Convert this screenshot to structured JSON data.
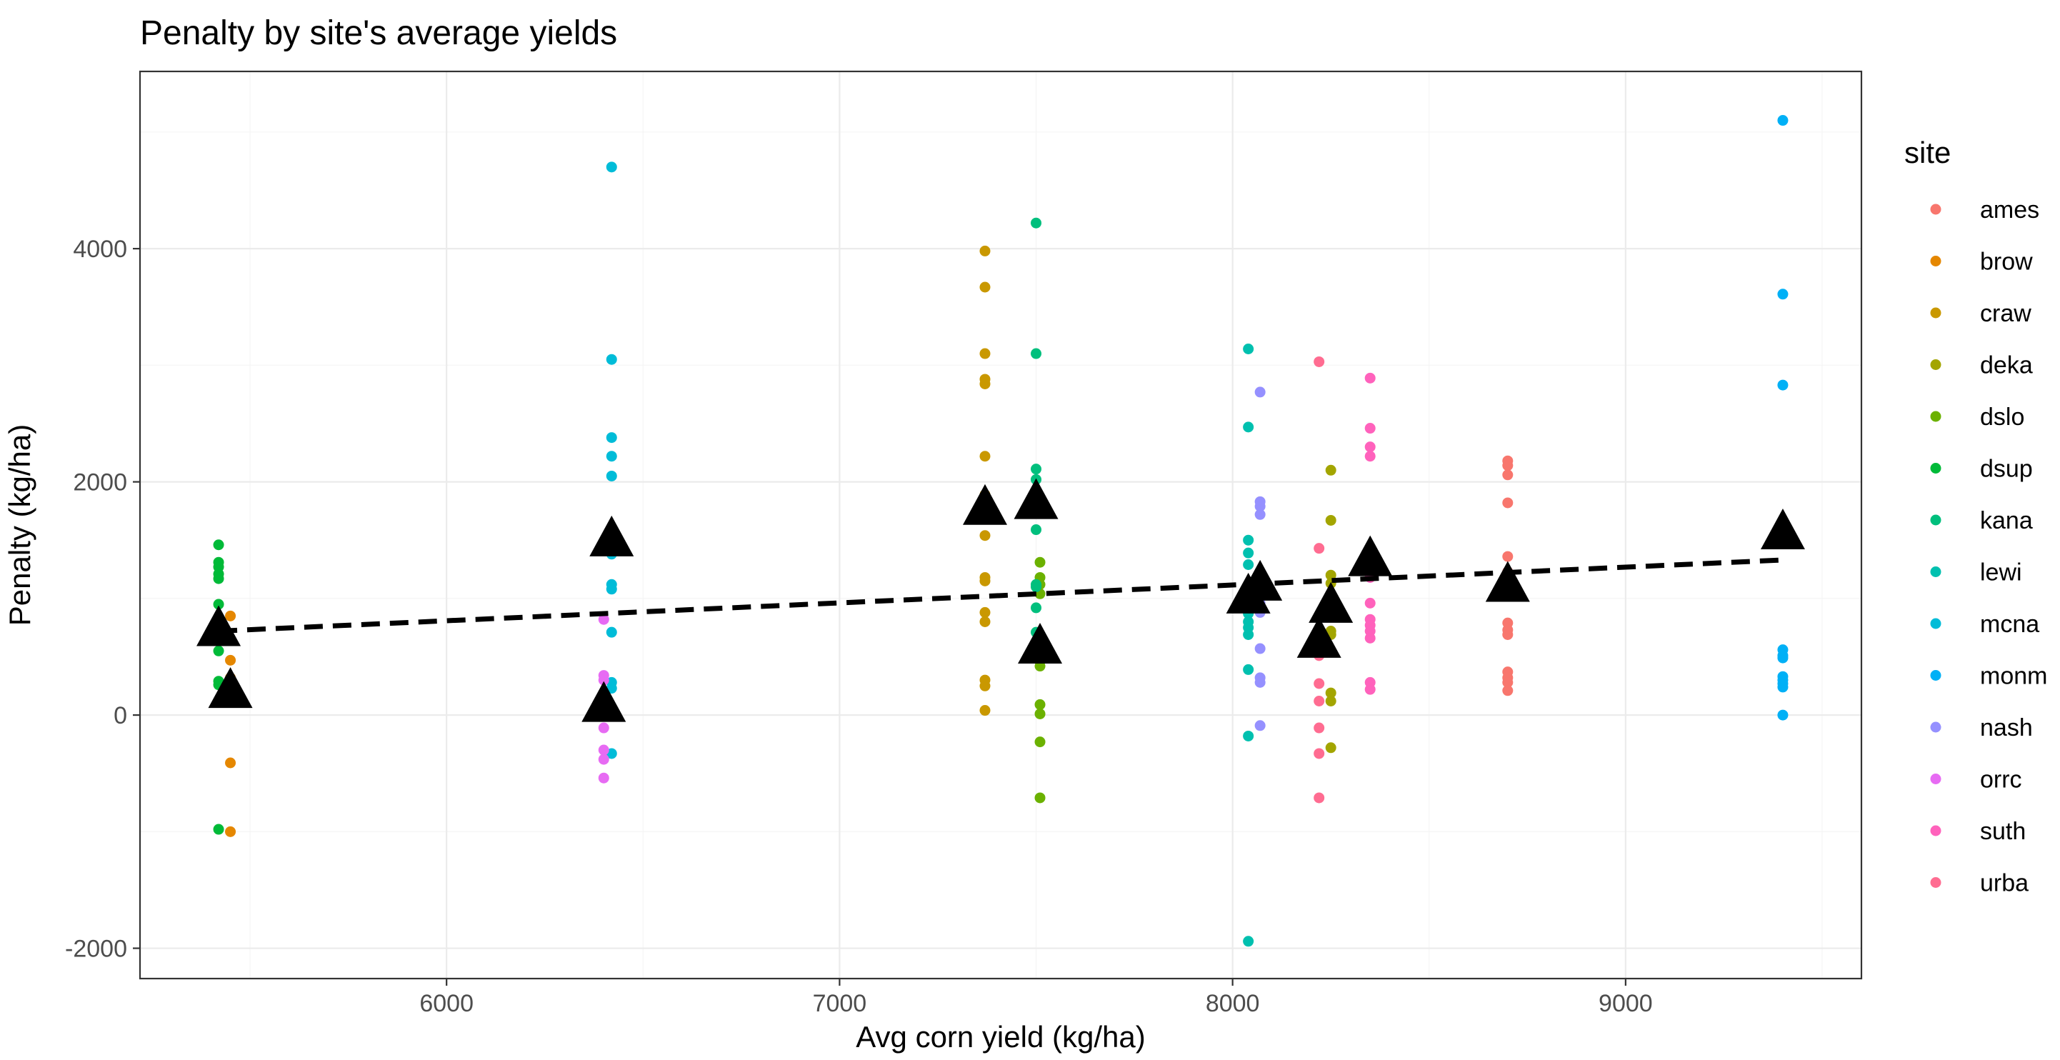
{
  "chart_data": {
    "type": "scatter",
    "title": "Penalty by site's average yields",
    "xlabel": "Avg corn yield (kg/ha)",
    "ylabel": "Penalty (kg/ha)",
    "xlim": [
      5220,
      9600
    ],
    "ylim": [
      -2260,
      5520
    ],
    "x_ticks": [
      6000,
      7000,
      8000,
      9000
    ],
    "y_ticks": [
      -2000,
      0,
      2000,
      4000
    ],
    "x_tick_labels": [
      "6000",
      "7000",
      "8000",
      "9000"
    ],
    "y_tick_labels": [
      "-2000",
      "0",
      "2000",
      "4000"
    ],
    "grid": true,
    "legend": {
      "title": "site",
      "placement": "right",
      "entries": [
        "ames",
        "brow",
        "craw",
        "deka",
        "dslo",
        "dsup",
        "kana",
        "lewi",
        "mcna",
        "monm",
        "nash",
        "orrc",
        "suth",
        "urba"
      ]
    },
    "series": [
      {
        "name": "ames",
        "color": "#F8766D",
        "x": 8700,
        "values": [
          2180,
          2140,
          2060,
          1820,
          1360,
          1230,
          1180,
          790,
          730,
          690,
          370,
          320,
          280,
          210
        ]
      },
      {
        "name": "brow",
        "color": "#E58700",
        "x": 5450,
        "values": [
          850,
          470,
          320,
          -410,
          -1000
        ]
      },
      {
        "name": "craw",
        "color": "#C99800",
        "x": 7370,
        "values": [
          3980,
          3670,
          3100,
          2880,
          2840,
          2220,
          1890,
          1540,
          1180,
          1150,
          880,
          800,
          300,
          250,
          40
        ]
      },
      {
        "name": "deka",
        "color": "#A3A500",
        "x": 8250,
        "values": [
          2100,
          1670,
          1200,
          1130,
          980,
          940,
          880,
          720,
          690,
          190,
          120,
          -280
        ]
      },
      {
        "name": "dslo",
        "color": "#6BB100",
        "x": 7510,
        "values": [
          1310,
          1180,
          1120,
          1040,
          670,
          560,
          420,
          90,
          10,
          -230,
          -710
        ]
      },
      {
        "name": "dsup",
        "color": "#00BA38",
        "x": 5420,
        "values": [
          1460,
          1310,
          1270,
          1210,
          1170,
          950,
          550,
          290,
          260,
          -980
        ]
      },
      {
        "name": "kana",
        "color": "#00BF7D",
        "x": 7500,
        "values": [
          4220,
          3100,
          2110,
          2020,
          1590,
          1120,
          1100,
          920,
          710
        ]
      },
      {
        "name": "lewi",
        "color": "#00C0AF",
        "x": 8040,
        "values": [
          3140,
          2470,
          1500,
          1390,
          1290,
          1000,
          930,
          870,
          800,
          750,
          690,
          390,
          -180,
          -1940
        ]
      },
      {
        "name": "mcna",
        "color": "#00BCD8",
        "x": 6420,
        "values": [
          4700,
          3050,
          2380,
          2220,
          2050,
          1380,
          1120,
          1080,
          710,
          280,
          230,
          -330
        ]
      },
      {
        "name": "monm",
        "color": "#00B0F6",
        "x": 9400,
        "values": [
          5100,
          3610,
          2830,
          560,
          510,
          490,
          330,
          300,
          270,
          240,
          0
        ]
      },
      {
        "name": "nash",
        "color": "#9590FF",
        "x": 8070,
        "values": [
          2770,
          1830,
          1790,
          1720,
          960,
          880,
          570,
          320,
          280,
          -90
        ]
      },
      {
        "name": "orrc",
        "color": "#E76BF3",
        "x": 6400,
        "values": [
          340,
          300,
          110,
          -110,
          -300,
          -380,
          -540,
          820
        ]
      },
      {
        "name": "suth",
        "color": "#FF62BC",
        "x": 8350,
        "values": [
          2890,
          2460,
          2300,
          2220,
          1180,
          960,
          820,
          770,
          720,
          660,
          280,
          220
        ]
      },
      {
        "name": "urba",
        "color": "#FF6C91",
        "x": 8220,
        "values": [
          3030,
          1430,
          840,
          720,
          510,
          270,
          120,
          -110,
          -330,
          -710
        ]
      }
    ],
    "site_means": [
      {
        "x": 5420,
        "y": 720
      },
      {
        "x": 5450,
        "y": 190
      },
      {
        "x": 6400,
        "y": 70
      },
      {
        "x": 6420,
        "y": 1490
      },
      {
        "x": 7370,
        "y": 1760
      },
      {
        "x": 7500,
        "y": 1810
      },
      {
        "x": 7510,
        "y": 570
      },
      {
        "x": 8040,
        "y": 1000
      },
      {
        "x": 8070,
        "y": 1110
      },
      {
        "x": 8220,
        "y": 620
      },
      {
        "x": 8250,
        "y": 920
      },
      {
        "x": 8350,
        "y": 1320
      },
      {
        "x": 8700,
        "y": 1100
      },
      {
        "x": 9400,
        "y": 1550
      }
    ],
    "trend_line": {
      "style": "dashed",
      "x": [
        5420,
        9400
      ],
      "y": [
        720,
        1330
      ]
    }
  }
}
